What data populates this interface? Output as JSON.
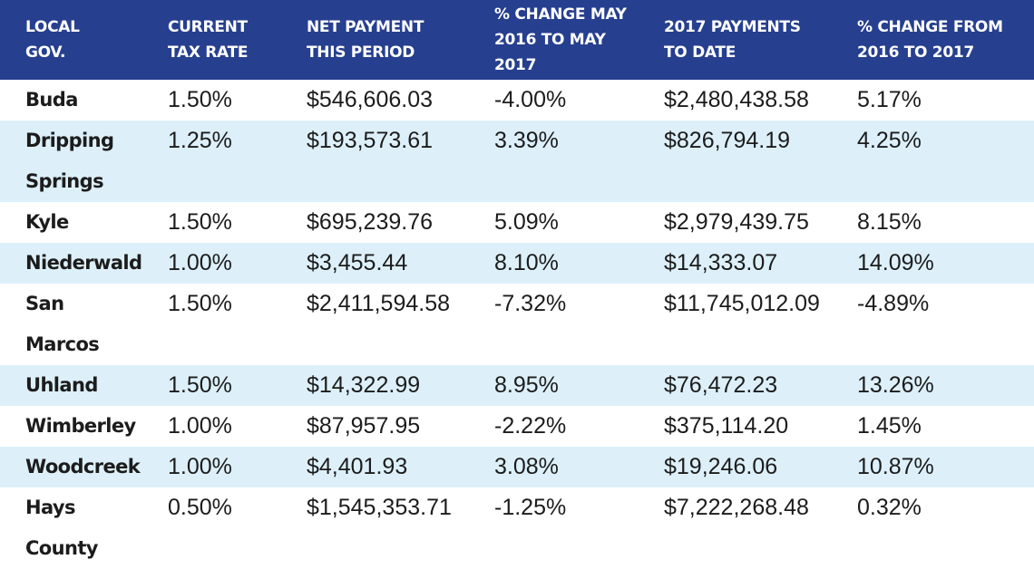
{
  "headers": [
    "LOCAL\nGOV.",
    "CURRENT\nTAX RATE",
    "NET PAYMENT\nTHIS PERIOD",
    "% CHANGE MAY\n2016 TO MAY 2017",
    "2017 PAYMENTS\nTO DATE",
    "% CHANGE FROM\n2016 TO 2017"
  ],
  "rows": [
    {
      "gov": "Buda",
      "rate": "1.50%",
      "net": "$546,606.03",
      "change_may": "-4.00%",
      "ytd": "$2,480,438.58",
      "change_year": "5.17%"
    },
    {
      "gov": "Dripping Springs",
      "rate": "1.25%",
      "net": "$193,573.61",
      "change_may": "3.39%",
      "ytd": "$826,794.19",
      "change_year": "4.25%"
    },
    {
      "gov": "Kyle",
      "rate": "1.50%",
      "net": "$695,239.76",
      "change_may": "5.09%",
      "ytd": "$2,979,439.75",
      "change_year": "8.15%"
    },
    {
      "gov": "Niederwald",
      "rate": "1.00%",
      "net": "$3,455.44",
      "change_may": "8.10%",
      "ytd": "$14,333.07",
      "change_year": "14.09%"
    },
    {
      "gov": "San Marcos",
      "rate": "1.50%",
      "net": "$2,411,594.58",
      "change_may": "-7.32%",
      "ytd": "$11,745,012.09",
      "change_year": "-4.89%"
    },
    {
      "gov": "Uhland",
      "rate": "1.50%",
      "net": "$14,322.99",
      "change_may": "8.95%",
      "ytd": "$76,472.23",
      "change_year": "13.26%"
    },
    {
      "gov": "Wimberley",
      "rate": "1.00%",
      "net": "$87,957.95",
      "change_may": "-2.22%",
      "ytd": "$375,114.20",
      "change_year": "1.45%"
    },
    {
      "gov": "Woodcreek",
      "rate": "1.00%",
      "net": "$4,401.93",
      "change_may": "3.08%",
      "ytd": "$19,246.06",
      "change_year": "10.87%"
    },
    {
      "gov": "Hays County",
      "rate": "0.50%",
      "net": "$1,545,353.71",
      "change_may": "-1.25%",
      "ytd": "$7,222,268.48",
      "change_year": "0.32%"
    }
  ],
  "colors": {
    "header_bg": "#263f8f",
    "stripe_bg": "#ddf0fa",
    "header_text": "#ffffff"
  }
}
